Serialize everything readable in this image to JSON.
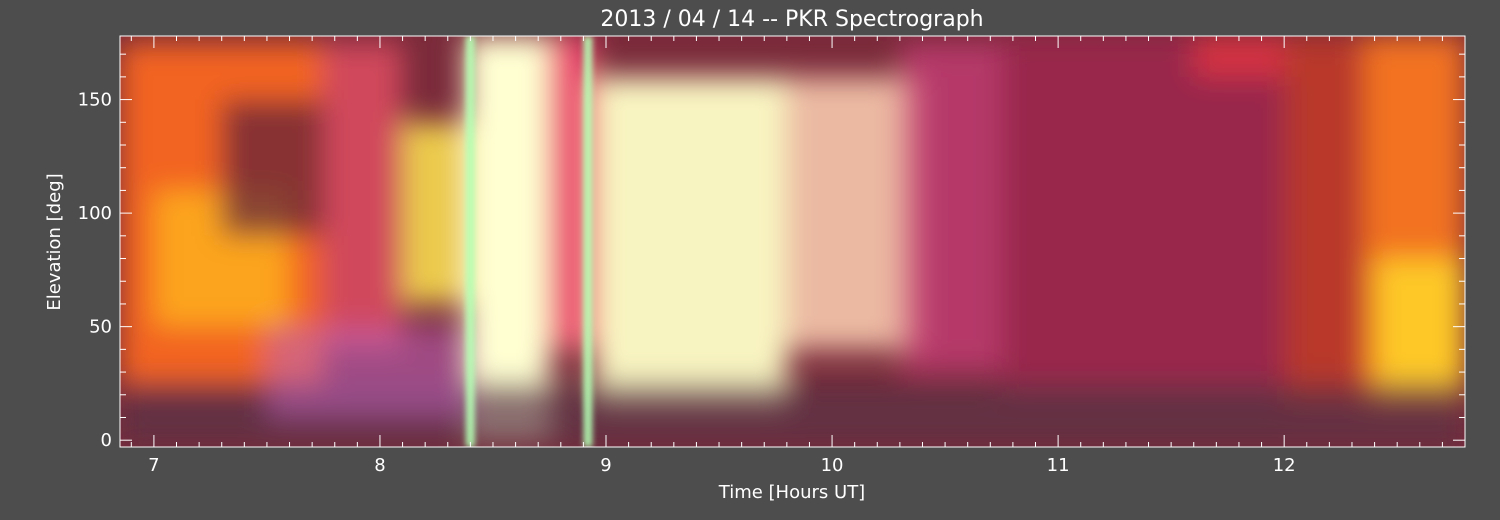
{
  "chart_data": {
    "type": "heatmap",
    "title": "2013 / 04 / 14 -- PKR Spectrograph",
    "xlabel": "Time [Hours UT]",
    "ylabel": "Elevation [deg]",
    "xlim": [
      6.85,
      12.8
    ],
    "ylim": [
      -3,
      178
    ],
    "x_ticks": [
      7,
      8,
      9,
      10,
      11,
      12
    ],
    "x_tick_labels": [
      "7",
      "8",
      "9",
      "10",
      "11",
      "12"
    ],
    "y_ticks": [
      0,
      50,
      100,
      150
    ],
    "y_tick_labels": [
      "0",
      "50",
      "100",
      "150"
    ],
    "colors": {
      "background": "#4d4d4d",
      "axis": "#ffffff",
      "plot_base": "#7a2a3a"
    },
    "emission_features": [
      {
        "x0": 6.85,
        "x1": 7.75,
        "y0": 25,
        "y1": 175,
        "color": "#ff6a1e",
        "intensity": 0.9
      },
      {
        "x0": 7.0,
        "x1": 7.6,
        "y0": 50,
        "y1": 110,
        "color": "#ffb41e",
        "intensity": 0.8
      },
      {
        "x0": 7.3,
        "x1": 7.8,
        "y0": 90,
        "y1": 150,
        "color": "#5a1e3c",
        "intensity": 0.7
      },
      {
        "x0": 7.75,
        "x1": 8.1,
        "y0": 40,
        "y1": 175,
        "color": "#e65064",
        "intensity": 0.8
      },
      {
        "x0": 8.1,
        "x1": 8.38,
        "y0": 60,
        "y1": 140,
        "color": "#ffe650",
        "intensity": 0.85
      },
      {
        "x0": 8.38,
        "x1": 8.75,
        "y0": 0,
        "y1": 178,
        "color": "#ffffd2",
        "intensity": 1.0
      },
      {
        "x0": 8.75,
        "x1": 8.95,
        "y0": 40,
        "y1": 178,
        "color": "#ff5078",
        "intensity": 0.85
      },
      {
        "x0": 8.95,
        "x1": 9.8,
        "y0": 15,
        "y1": 160,
        "color": "#ffffc8",
        "intensity": 0.95
      },
      {
        "x0": 9.8,
        "x1": 10.4,
        "y0": 40,
        "y1": 160,
        "color": "#ffd2b4",
        "intensity": 0.85
      },
      {
        "x0": 10.3,
        "x1": 10.75,
        "y0": 30,
        "y1": 175,
        "color": "#c83c78",
        "intensity": 0.75
      },
      {
        "x0": 10.75,
        "x1": 12.0,
        "y0": 20,
        "y1": 178,
        "color": "#a02850",
        "intensity": 0.8
      },
      {
        "x0": 11.6,
        "x1": 12.0,
        "y0": 160,
        "y1": 178,
        "color": "#ff3c3c",
        "intensity": 0.6
      },
      {
        "x0": 12.0,
        "x1": 12.35,
        "y0": 15,
        "y1": 178,
        "color": "#c83c28",
        "intensity": 0.8
      },
      {
        "x0": 12.35,
        "x1": 12.8,
        "y0": 15,
        "y1": 178,
        "color": "#ff7a1e",
        "intensity": 0.9
      },
      {
        "x0": 12.4,
        "x1": 12.8,
        "y0": 20,
        "y1": 80,
        "color": "#ffd228",
        "intensity": 0.9
      },
      {
        "x0": 6.85,
        "x1": 12.8,
        "y0": -3,
        "y1": 25,
        "color": "#5a3246",
        "intensity": 0.7
      },
      {
        "x0": 7.5,
        "x1": 8.4,
        "y0": 10,
        "y1": 50,
        "color": "#be64be",
        "intensity": 0.55
      }
    ],
    "vertical_bands": [
      {
        "x0": 8.38,
        "x1": 8.42,
        "color": "#b4ffb4"
      },
      {
        "x0": 8.9,
        "x1": 8.94,
        "color": "#b4ffb4"
      }
    ]
  }
}
